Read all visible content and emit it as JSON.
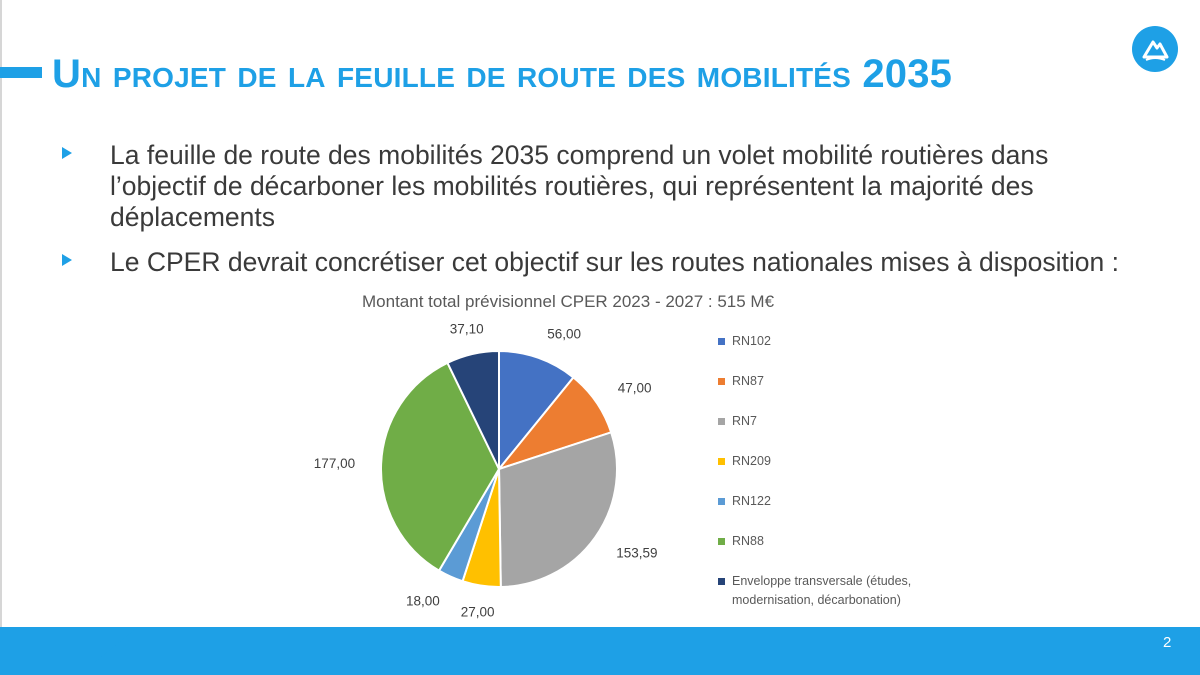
{
  "slide": {
    "title": "Un projet de la feuille de route des mobilités 2035",
    "page_number": "2",
    "bullets": [
      "La feuille de route des mobilités 2035 comprend un volet mobilité routières dans l’objectif de décarboner les mobilités routières, qui représentent la majorité des déplacements",
      "Le CPER devrait concrétiser cet objectif sur les routes nationales mises à disposition :"
    ],
    "logo_icon": "mountain-logo-icon"
  },
  "colors": {
    "accent": "#1ea0e6",
    "text": "#3a3a3a"
  },
  "chart_data": {
    "type": "pie",
    "title": "Montant total  prévisionnel CPER 2023 - 2027 : 515 M€",
    "categories": [
      "RN102",
      "RN87",
      "RN7",
      "RN209",
      "RN122",
      "RN88",
      "Enveloppe transversale (études, modernisation, décarbonation)"
    ],
    "values": [
      56.0,
      47.0,
      153.59,
      27.0,
      18.0,
      177.0,
      37.1
    ],
    "data_labels": [
      "56,00",
      "47,00",
      "153,59",
      "27,00",
      "18,00",
      "177,00",
      "37,10"
    ],
    "colors": [
      "#4472c4",
      "#ed7d31",
      "#a5a5a5",
      "#ffc000",
      "#5b9bd5",
      "#70ad47",
      "#264478"
    ],
    "legend_position": "right"
  }
}
